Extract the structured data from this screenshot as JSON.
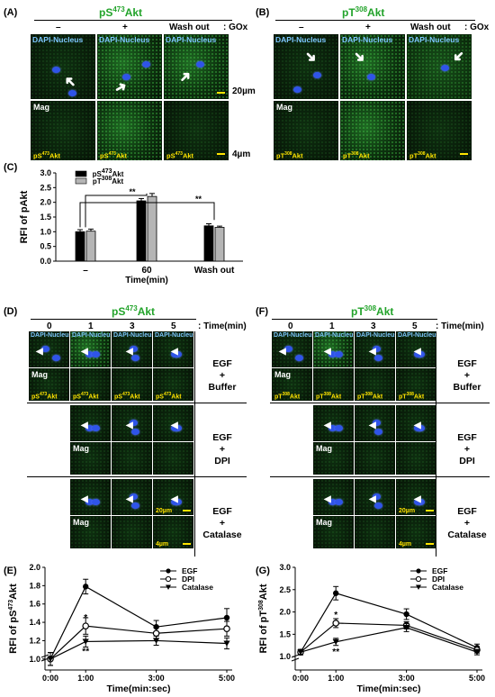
{
  "panelA": {
    "letter": "(A)",
    "title_pre": "pS",
    "title_sup": "473",
    "title_post": "Akt",
    "cols": [
      "–",
      "+",
      "Wash out"
    ],
    "gox": ": GOx",
    "tile_label": "DAPI-Nucleus",
    "mag": "Mag",
    "akt_pre": "pS",
    "akt_sup": "473",
    "akt_post": "Akt",
    "scale1": "20µm",
    "scale2": "4µm"
  },
  "panelB": {
    "letter": "(B)",
    "title_pre": "pT",
    "title_sup": "308",
    "title_post": "Akt",
    "cols": [
      "–",
      "+",
      "Wash out"
    ],
    "gox": ": GOx",
    "tile_label": "DAPI-Nucleus",
    "mag": "Mag",
    "akt_pre": "pT",
    "akt_sup": "308",
    "akt_post": "Akt"
  },
  "panelC": {
    "letter": "(C)",
    "ylabel": "RFI of pAkt",
    "xlabel": "Time(min)",
    "legend": [
      "pS473Akt",
      "pT308Akt"
    ],
    "sig": [
      "**",
      "**"
    ]
  },
  "panelD": {
    "letter": "(D)",
    "title_pre": "pS",
    "title_sup": "473",
    "title_post": "Akt",
    "times": [
      "0",
      "1",
      "3",
      "5"
    ],
    "time_unit": ": Time(min)",
    "tile_label": "DAPI-Nucleus",
    "mag": "Mag",
    "akt_pre": "pS",
    "akt_sup": "473",
    "akt_post": "Akt",
    "conds": [
      [
        "EGF",
        "+",
        "Buffer"
      ],
      [
        "EGF",
        "+",
        "DPI"
      ],
      [
        "EGF",
        "+",
        "Catalase"
      ]
    ],
    "scale1": "20µm",
    "scale2": "4µm"
  },
  "panelF": {
    "letter": "(F)",
    "title_pre": "pT",
    "title_sup": "308",
    "title_post": "Akt",
    "times": [
      "0",
      "1",
      "3",
      "5"
    ],
    "time_unit": ": Time(min)",
    "tile_label": "DAPI-Nucleus",
    "mag": "Mag",
    "akt_pre": "pT",
    "akt_sup": "308",
    "akt_post": "Akt",
    "conds": [
      [
        "EGF",
        "+",
        "Buffer"
      ],
      [
        "EGF",
        "+",
        "DPI"
      ],
      [
        "EGF",
        "+",
        "Catalase"
      ]
    ],
    "scale1": "20µm",
    "scale2": "4µm"
  },
  "panelE": {
    "letter": "(E)",
    "ylabel": "RFI of pS473Akt",
    "xlabel": "Time(min:sec)"
  },
  "panelG": {
    "letter": "(G)",
    "ylabel": "RFI of pT308Akt",
    "xlabel": "Time(min:sec)"
  },
  "chart_data": [
    {
      "type": "bar",
      "panel": "C",
      "ylabel": "RFI of pAkt",
      "xlabel": "Time(min)",
      "categories": [
        "–",
        "60",
        "Wash out"
      ],
      "series": [
        {
          "name": "pS473Akt",
          "values": [
            1.0,
            2.05,
            1.2
          ],
          "err": [
            0.07,
            0.08,
            0.07
          ],
          "color": "#000000"
        },
        {
          "name": "pT308Akt",
          "values": [
            1.02,
            2.2,
            1.15
          ],
          "err": [
            0.07,
            0.1,
            0.04
          ],
          "color": "#b5b5b5"
        }
      ],
      "ylim": [
        0,
        3.0
      ],
      "yticks": [
        0.0,
        0.5,
        1.0,
        1.5,
        2.0,
        2.5,
        3.0
      ],
      "annotations": [
        {
          "text": "**",
          "between": [
            "–",
            "60"
          ]
        },
        {
          "text": "**",
          "between": [
            "–",
            "Wash out"
          ]
        }
      ]
    },
    {
      "type": "line",
      "panel": "E",
      "ylabel": "RFI of pS473Akt",
      "xlabel": "Time(min:sec)",
      "x": [
        "0:00",
        "1:00",
        "3:00",
        "5:00"
      ],
      "ylim": [
        0,
        2.0
      ],
      "yticks": [
        1.0,
        1.2,
        1.4,
        1.6,
        1.8,
        2.0
      ],
      "axis_break": true,
      "series": [
        {
          "name": "EGF",
          "marker": "filled-circle",
          "values": [
            1.0,
            1.79,
            1.35,
            1.45
          ],
          "err": [
            0.07,
            0.08,
            0.07,
            0.1
          ]
        },
        {
          "name": "DPI",
          "marker": "open-circle",
          "values": [
            1.0,
            1.36,
            1.28,
            1.33
          ],
          "err": [
            0.07,
            0.09,
            0.06,
            0.08
          ]
        },
        {
          "name": "Catalase",
          "marker": "filled-triangle-down",
          "values": [
            1.0,
            1.19,
            1.2,
            1.17
          ],
          "err": [
            0.07,
            0.06,
            0.05,
            0.06
          ]
        }
      ],
      "annotations": [
        {
          "x": "1:00",
          "text": "*"
        },
        {
          "x": "1:00",
          "text": "**"
        }
      ]
    },
    {
      "type": "line",
      "panel": "G",
      "ylabel": "RFI of pT308Akt",
      "xlabel": "Time(min:sec)",
      "x": [
        "0:00",
        "1:00",
        "3:00",
        "5:00"
      ],
      "ylim": [
        0,
        3.0
      ],
      "yticks": [
        1.0,
        1.5,
        2.0,
        2.5,
        3.0
      ],
      "axis_break": true,
      "series": [
        {
          "name": "EGF",
          "marker": "filled-circle",
          "values": [
            1.1,
            2.42,
            1.95,
            1.2
          ],
          "err": [
            0.06,
            0.15,
            0.12,
            0.08
          ]
        },
        {
          "name": "DPI",
          "marker": "open-circle",
          "values": [
            1.1,
            1.75,
            1.7,
            1.15
          ],
          "err": [
            0.06,
            0.1,
            0.08,
            0.07
          ]
        },
        {
          "name": "Catalase",
          "marker": "filled-triangle-down",
          "values": [
            1.1,
            1.33,
            1.65,
            1.1
          ],
          "err": [
            0.05,
            0.08,
            0.09,
            0.06
          ]
        }
      ],
      "annotations": [
        {
          "x": "1:00",
          "text": "*"
        },
        {
          "x": "1:00",
          "text": "**"
        }
      ]
    }
  ]
}
